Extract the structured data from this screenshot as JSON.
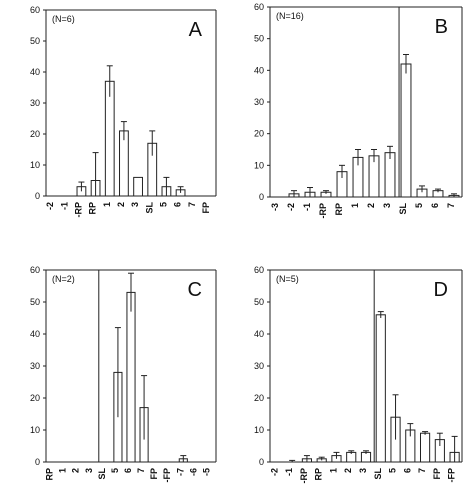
{
  "chart_data": [
    {
      "type": "bar",
      "panel": "A",
      "n_label": "(N=6)",
      "categories": [
        "-2",
        "-1",
        "-RP",
        "RP",
        "1",
        "2",
        "3",
        "SL",
        "5",
        "6",
        "7",
        "FP"
      ],
      "values": [
        0,
        0,
        3,
        5,
        37,
        21,
        6,
        17,
        3,
        2,
        0,
        0
      ],
      "errors": [
        0,
        0,
        1.5,
        9,
        5,
        3,
        0,
        4,
        3,
        1,
        0,
        0
      ],
      "ylim": [
        0,
        60
      ],
      "yticks": [
        "0",
        "10",
        "20",
        "30",
        "40",
        "50",
        "60"
      ],
      "divider_category": null,
      "grid": false
    },
    {
      "type": "bar",
      "panel": "B",
      "n_label": "(N=16)",
      "categories": [
        "-3",
        "-2",
        "-1",
        "-RP",
        "RP",
        "1",
        "2",
        "3",
        "SL",
        "5",
        "6",
        "7"
      ],
      "values": [
        0,
        1,
        1.5,
        1.5,
        8,
        12.5,
        13,
        14,
        42,
        2.5,
        2,
        0.5
      ],
      "errors": [
        0,
        1,
        1.5,
        0.5,
        2,
        2.5,
        2,
        2,
        3,
        1,
        0.5,
        0.5
      ],
      "ylim": [
        0,
        60
      ],
      "yticks": [
        "0",
        "10",
        "20",
        "30",
        "40",
        "50",
        "60"
      ],
      "divider_category": "SL",
      "grid": false
    },
    {
      "type": "bar",
      "panel": "C",
      "n_label": "(N=2)",
      "categories": [
        "RP",
        "1",
        "2",
        "3",
        "SL",
        "5",
        "6",
        "7",
        "FP",
        "-FP",
        "-7",
        "-6",
        "-5"
      ],
      "values": [
        0,
        0,
        0,
        0,
        0,
        28,
        53,
        17,
        0,
        0,
        1,
        0,
        0
      ],
      "errors": [
        0,
        0,
        0,
        0,
        0,
        14,
        6,
        10,
        0,
        0,
        1,
        0,
        0
      ],
      "ylim": [
        0,
        60
      ],
      "yticks": [
        "0",
        "10",
        "20",
        "30",
        "40",
        "50",
        "60"
      ],
      "divider_category": "SL",
      "grid": false
    },
    {
      "type": "bar",
      "panel": "D",
      "n_label": "(N=5)",
      "categories": [
        "-2",
        "-1",
        "-RP",
        "RP",
        "1",
        "2",
        "3",
        "SL",
        "5",
        "6",
        "7",
        "FP",
        "-FP"
      ],
      "values": [
        0,
        0,
        1,
        1,
        2,
        3,
        3,
        46,
        14,
        10,
        9,
        7,
        3
      ],
      "errors": [
        0,
        0.5,
        1,
        0.5,
        1,
        0.5,
        0.5,
        1,
        7,
        2,
        0.5,
        2,
        5
      ],
      "ylim": [
        0,
        60
      ],
      "yticks": [
        "0",
        "10",
        "20",
        "30",
        "40",
        "50",
        "60"
      ],
      "divider_category": "SL",
      "grid": false
    }
  ]
}
